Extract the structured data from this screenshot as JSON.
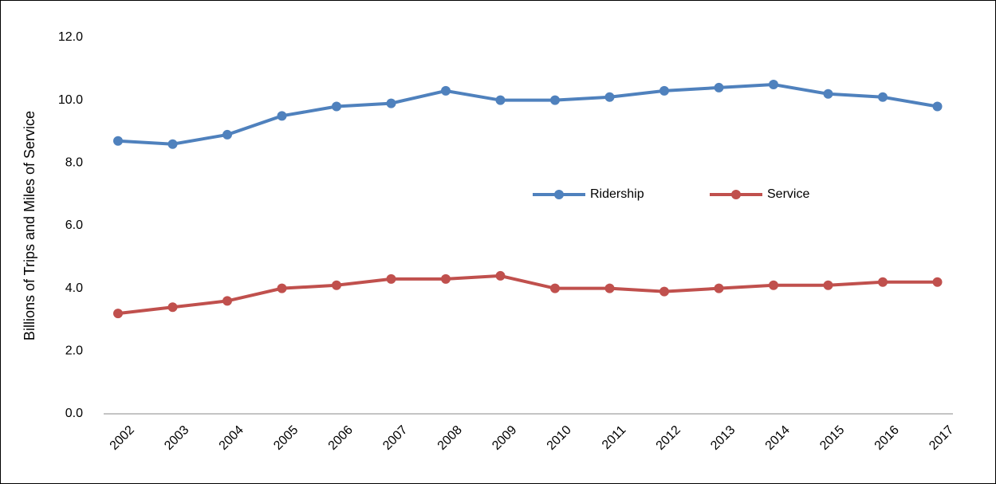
{
  "chart_data": {
    "type": "line",
    "y_label": "Billions of Trips and Miles of Service",
    "categories": [
      "2002",
      "2003",
      "2004",
      "2005",
      "2006",
      "2007",
      "2008",
      "2009",
      "2010",
      "2011",
      "2012",
      "2013",
      "2014",
      "2015",
      "2016",
      "2017"
    ],
    "series": [
      {
        "name": "Ridership",
        "color": "#4f81bd",
        "values": [
          8.7,
          8.6,
          8.9,
          9.5,
          9.8,
          9.9,
          10.3,
          10.0,
          10.0,
          10.1,
          10.3,
          10.4,
          10.5,
          10.2,
          10.1,
          9.8
        ]
      },
      {
        "name": "Service",
        "color": "#c0504d",
        "values": [
          3.2,
          3.4,
          3.6,
          4.0,
          4.1,
          4.3,
          4.3,
          4.4,
          4.0,
          4.0,
          3.9,
          4.0,
          4.1,
          4.1,
          4.2,
          4.2
        ]
      }
    ],
    "ylim": [
      0,
      12
    ],
    "yticks": [
      {
        "value": 0,
        "label": "0.0"
      },
      {
        "value": 2,
        "label": "2.0"
      },
      {
        "value": 4,
        "label": "4.0"
      },
      {
        "value": 6,
        "label": "6.0"
      },
      {
        "value": 8,
        "label": "8.0"
      },
      {
        "value": 10,
        "label": "10.0"
      },
      {
        "value": 12,
        "label": "12.0"
      }
    ],
    "grid": false,
    "legend": "center"
  }
}
